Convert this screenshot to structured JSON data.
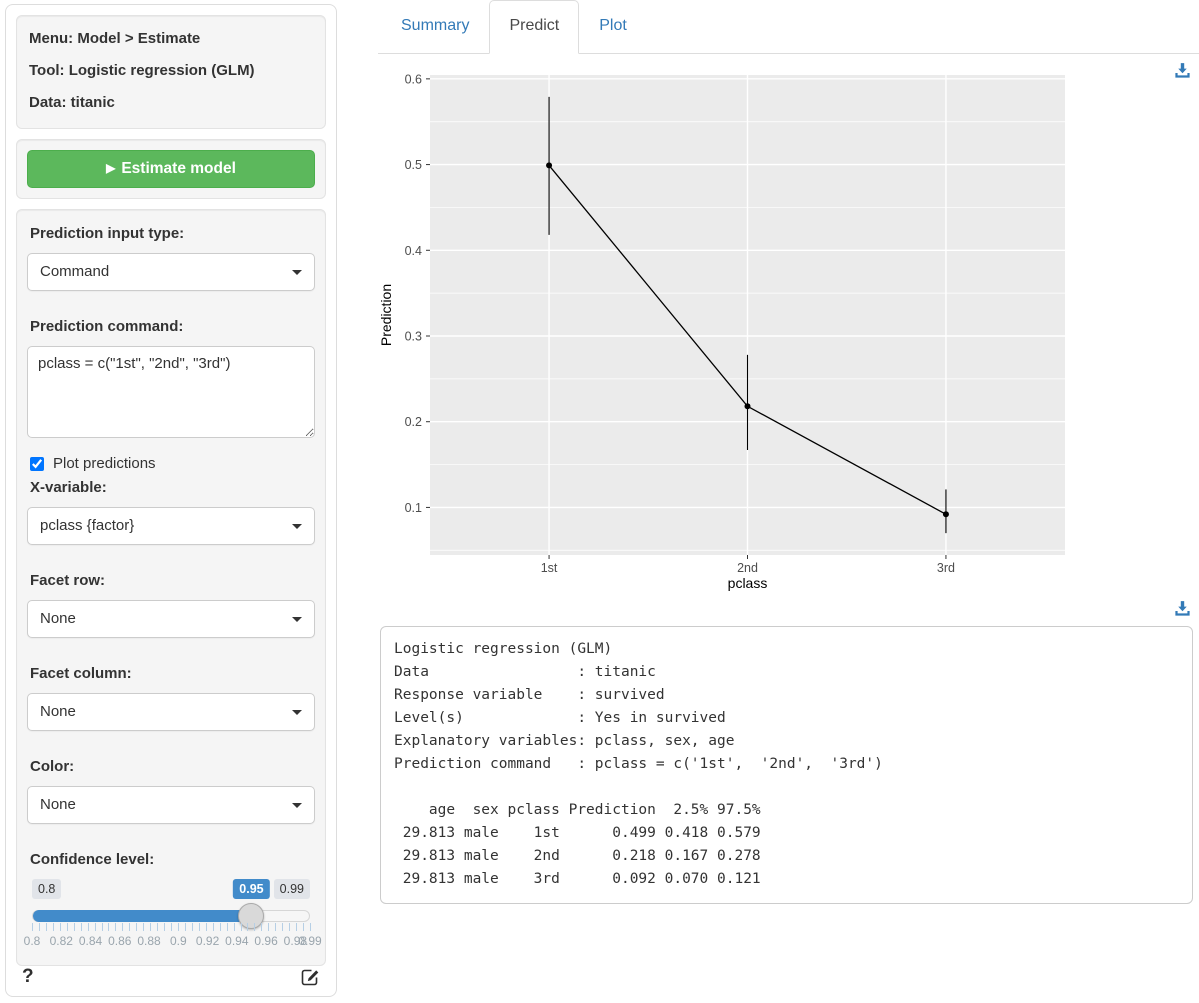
{
  "sidebar": {
    "info": {
      "lines": [
        "Menu: Model > Estimate",
        "Tool: Logistic regression (GLM)",
        "Data: titanic"
      ]
    },
    "estimate_button_label": "Estimate model",
    "controls": {
      "input_type_label": "Prediction input type:",
      "input_type_value": "Command",
      "command_label": "Prediction command:",
      "command_value": "pclass = c(\"1st\", \"2nd\", \"3rd\")",
      "plot_predictions_label": "Plot predictions",
      "plot_predictions_checked": true,
      "xvar_label": "X-variable:",
      "xvar_value": "pclass {factor}",
      "facet_row_label": "Facet row:",
      "facet_row_value": "None",
      "facet_col_label": "Facet column:",
      "facet_col_value": "None",
      "color_label": "Color:",
      "color_value": "None",
      "conf_level_label": "Confidence level:",
      "slider": {
        "min": 0.8,
        "max": 0.99,
        "value": 0.95,
        "min_label": "0.8",
        "max_label": "0.99",
        "value_label": "0.95",
        "grid_values": [
          0.8,
          0.82,
          0.84,
          0.86,
          0.88,
          0.9,
          0.92,
          0.94,
          0.96,
          0.98,
          0.99
        ],
        "grid_labels": [
          "0.8",
          "0.82",
          "0.84",
          "0.86",
          "0.88",
          "0.9",
          "0.92",
          "0.94",
          "0.96",
          "0.98",
          "0.99"
        ]
      }
    },
    "footer": {
      "help_label": "?"
    }
  },
  "tabs": {
    "summary": "Summary",
    "predict": "Predict",
    "plot": "Plot"
  },
  "chart_data": {
    "type": "line",
    "x": [
      "1st",
      "2nd",
      "3rd"
    ],
    "series": [
      {
        "name": "Prediction",
        "values": [
          0.499,
          0.218,
          0.092
        ],
        "lower": [
          0.418,
          0.167,
          0.07
        ],
        "upper": [
          0.579,
          0.278,
          0.121
        ]
      }
    ],
    "title": "",
    "xlabel": "pclass",
    "ylabel": "Prediction",
    "ylim": [
      0.0445,
      0.6045
    ],
    "yticks": [
      0.1,
      0.2,
      0.3,
      0.4,
      0.5,
      0.6
    ],
    "grid": true,
    "legend": "none",
    "panel_bg": "#ebebeb"
  },
  "output": {
    "lines": [
      "Logistic regression (GLM)",
      "Data                 : titanic",
      "Response variable    : survived",
      "Level(s)             : Yes in survived",
      "Explanatory variables: pclass, sex, age",
      "Prediction command   : pclass = c('1st',  '2nd',  '3rd')",
      "",
      "    age  sex pclass Prediction  2.5% 97.5%",
      " 29.813 male    1st      0.499 0.418 0.579",
      " 29.813 male    2nd      0.218 0.167 0.278",
      " 29.813 male    3rd      0.092 0.070 0.121"
    ]
  },
  "colors": {
    "accent_blue": "#428bca",
    "link_blue": "#337ab7",
    "success_green": "#5cb85c",
    "panel_gray": "#ebebeb"
  }
}
